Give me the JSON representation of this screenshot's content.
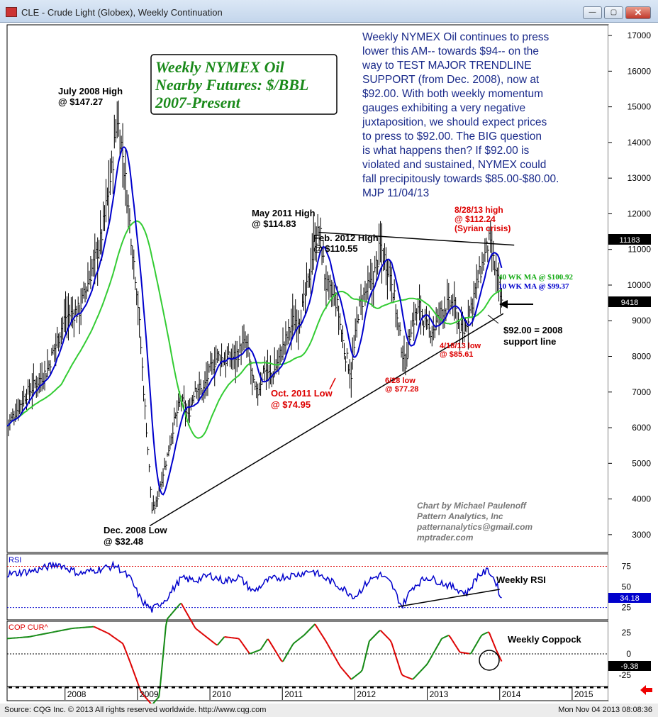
{
  "window": {
    "title": "CLE - Crude Light (Globex), Weekly Continuation",
    "min_glyph": "—",
    "max_glyph": "▢",
    "close_glyph": "✕"
  },
  "footer": {
    "source": "Source: CQG Inc. © 2013 All rights reserved worldwide. http://www.cqg.com",
    "timestamp": "Mon Nov 04 2013 08:08:36"
  },
  "chart_title": [
    "Weekly NYMEX Oil",
    "Nearby Futures: $/BBL",
    "2007-Present"
  ],
  "commentary": [
    "Weekly NYMEX Oil continues to press",
    "lower this AM-- towards $94-- on the",
    "way to TEST MAJOR TRENDLINE",
    "SUPPORT (from Dec. 2008), now at",
    "$92.00. With both weekly momentum",
    "gauges exhibiting a very negative",
    "juxtaposition, we should expect prices",
    "to press to $92.00.  The BIG question",
    "is what happens then? If $92.00 is",
    "violated and sustained, NYMEX could",
    "fall precipitously towards $85.00-$80.00.",
    "MJP 11/04/13"
  ],
  "credits": [
    "Chart by Michael Paulenoff",
    "Pattern Analytics, Inc",
    "patternanalytics@gmail.com",
    "mptrader.com"
  ],
  "annotations": {
    "july2008": [
      "July 2008 High",
      "@ $147.27"
    ],
    "dec2008": [
      "Dec. 2008 Low",
      "@ $32.48"
    ],
    "may2011": [
      "May 2011 High",
      "@ $114.83"
    ],
    "feb2012": [
      "Feb. 2012 High",
      "@ $110.55"
    ],
    "oct2011": [
      "Oct. 2011 Low",
      "@ $74.95"
    ],
    "jun2012": [
      "6/28 low",
      "@ $77.28"
    ],
    "apr2013": [
      "4/18/13 low",
      "@ $85.61"
    ],
    "aug2013": [
      "8/28/13 high",
      "@ $112.24",
      "(Syrian crisis)"
    ],
    "ma40": "40 WK MA @ $100.92",
    "ma10": "10 WK MA @ $99.37",
    "support": [
      "$92.00 = 2008",
      "support line"
    ]
  },
  "last_price_label": "9418",
  "upper_marker_label": "11183",
  "rsi_label": "RSI",
  "rsi_value_label": "34.18",
  "rsi_note": "Weekly RSI",
  "coppock_label": "COP CUR^",
  "coppock_value_label": "-9.38",
  "coppock_note": "Weekly Coppock",
  "colors": {
    "price_bars": "#000000",
    "ma10": "#0000cc",
    "ma40": "#33cc33",
    "rsi": "#0000cc",
    "coppock_up": "#118811",
    "coppock_down": "#dd0000",
    "title_green": "#1a8a1a",
    "commentary": "#1a2a8a",
    "annotation_red": "#dd0000"
  },
  "chart_data": [
    {
      "type": "ohlc",
      "title": "Weekly NYMEX Oil Nearby Futures: $/BBL 2007-Present",
      "x_ticks": [
        "2008",
        "2009",
        "2010",
        "2011",
        "2012",
        "2013",
        "2014",
        "2015"
      ],
      "y_ticks": [
        3000,
        4000,
        5000,
        6000,
        7000,
        8000,
        9000,
        10000,
        11000,
        12000,
        13000,
        14000,
        15000,
        16000,
        17000
      ],
      "y_range": [
        2500,
        17300
      ],
      "series": [
        {
          "name": "price",
          "points": [
            [
              2007.0,
              6050
            ],
            [
              2007.25,
              6900
            ],
            [
              2007.55,
              7600
            ],
            [
              2007.8,
              9100
            ],
            [
              2008.0,
              9300
            ],
            [
              2008.15,
              10300
            ],
            [
              2008.3,
              11300
            ],
            [
              2008.45,
              13300
            ],
            [
              2008.52,
              14727
            ],
            [
              2008.6,
              13600
            ],
            [
              2008.7,
              11600
            ],
            [
              2008.8,
              9700
            ],
            [
              2008.88,
              7200
            ],
            [
              2008.95,
              5200
            ],
            [
              2009.0,
              3700
            ],
            [
              2009.05,
              3800
            ],
            [
              2009.1,
              4300
            ],
            [
              2009.2,
              5100
            ],
            [
              2009.3,
              6100
            ],
            [
              2009.4,
              6800
            ],
            [
              2009.5,
              6300
            ],
            [
              2009.6,
              7200
            ],
            [
              2009.7,
              7000
            ],
            [
              2009.8,
              7600
            ],
            [
              2009.9,
              8000
            ],
            [
              2010.0,
              7900
            ],
            [
              2010.15,
              8000
            ],
            [
              2010.3,
              8400
            ],
            [
              2010.4,
              7200
            ],
            [
              2010.45,
              6900
            ],
            [
              2010.55,
              7700
            ],
            [
              2010.65,
              7400
            ],
            [
              2010.8,
              8200
            ],
            [
              2010.95,
              9000
            ],
            [
              2011.05,
              9100
            ],
            [
              2011.15,
              10000
            ],
            [
              2011.25,
              11300
            ],
            [
              2011.32,
              11483
            ],
            [
              2011.4,
              10000
            ],
            [
              2011.55,
              9500
            ],
            [
              2011.65,
              8200
            ],
            [
              2011.75,
              7495
            ],
            [
              2011.85,
              9300
            ],
            [
              2011.95,
              9800
            ],
            [
              2012.05,
              10100
            ],
            [
              2012.15,
              11055
            ],
            [
              2012.3,
              10300
            ],
            [
              2012.4,
              8800
            ],
            [
              2012.49,
              7728
            ],
            [
              2012.58,
              8900
            ],
            [
              2012.7,
              9400
            ],
            [
              2012.8,
              8700
            ],
            [
              2012.9,
              8800
            ],
            [
              2013.0,
              9300
            ],
            [
              2013.15,
              9500
            ],
            [
              2013.29,
              8561
            ],
            [
              2013.4,
              9400
            ],
            [
              2013.55,
              10500
            ],
            [
              2013.65,
              11224
            ],
            [
              2013.75,
              10300
            ],
            [
              2013.83,
              9418
            ]
          ]
        },
        {
          "name": "10 wk MA",
          "last": 99.37
        },
        {
          "name": "40 wk MA",
          "last": 100.92
        },
        {
          "name": "support trendline",
          "points": [
            [
              2008.97,
              3248
            ],
            [
              2013.85,
              9200
            ]
          ]
        },
        {
          "name": "resistance trendline",
          "points": [
            [
              2011.3,
              11480
            ],
            [
              2014.0,
              11120
            ]
          ]
        }
      ]
    },
    {
      "type": "line",
      "title": "RSI",
      "y_ticks": [
        25,
        50,
        75
      ],
      "last": 34.18,
      "series": [
        {
          "name": "RSI",
          "points": [
            [
              2007.0,
              65
            ],
            [
              2007.4,
              70
            ],
            [
              2007.7,
              78
            ],
            [
              2008.0,
              66
            ],
            [
              2008.3,
              72
            ],
            [
              2008.5,
              76
            ],
            [
              2008.7,
              60
            ],
            [
              2008.85,
              34
            ],
            [
              2009.0,
              22
            ],
            [
              2009.2,
              36
            ],
            [
              2009.4,
              60
            ],
            [
              2009.6,
              58
            ],
            [
              2009.8,
              64
            ],
            [
              2010.0,
              57
            ],
            [
              2010.2,
              62
            ],
            [
              2010.4,
              44
            ],
            [
              2010.6,
              58
            ],
            [
              2010.8,
              62
            ],
            [
              2011.0,
              65
            ],
            [
              2011.2,
              70
            ],
            [
              2011.4,
              60
            ],
            [
              2011.6,
              50
            ],
            [
              2011.8,
              38
            ],
            [
              2012.0,
              58
            ],
            [
              2012.15,
              65
            ],
            [
              2012.3,
              54
            ],
            [
              2012.45,
              26
            ],
            [
              2012.6,
              50
            ],
            [
              2012.8,
              62
            ],
            [
              2013.0,
              55
            ],
            [
              2013.2,
              48
            ],
            [
              2013.35,
              42
            ],
            [
              2013.5,
              64
            ],
            [
              2013.65,
              70
            ],
            [
              2013.75,
              55
            ],
            [
              2013.83,
              34
            ]
          ]
        },
        {
          "name": "RSI trendline",
          "points": [
            [
              2012.4,
              26
            ],
            [
              2013.8,
              47
            ]
          ]
        }
      ]
    },
    {
      "type": "line",
      "title": "COP CUR^",
      "y_ticks": [
        -25,
        0,
        25
      ],
      "last": -9.38,
      "series": [
        {
          "name": "Coppock",
          "points": [
            [
              2007.0,
              18
            ],
            [
              2007.3,
              20
            ],
            [
              2007.6,
              25
            ],
            [
              2007.9,
              30
            ],
            [
              2008.2,
              32
            ],
            [
              2008.4,
              24
            ],
            [
              2008.6,
              12
            ],
            [
              2008.7,
              -10
            ],
            [
              2008.85,
              -45
            ],
            [
              2009.0,
              -60
            ],
            [
              2009.1,
              -50
            ],
            [
              2009.2,
              40
            ],
            [
              2009.4,
              60
            ],
            [
              2009.6,
              30
            ],
            [
              2009.9,
              10
            ],
            [
              2010.0,
              20
            ],
            [
              2010.2,
              18
            ],
            [
              2010.35,
              0
            ],
            [
              2010.5,
              5
            ],
            [
              2010.6,
              18
            ],
            [
              2010.8,
              -10
            ],
            [
              2010.95,
              12
            ],
            [
              2011.1,
              22
            ],
            [
              2011.25,
              35
            ],
            [
              2011.4,
              15
            ],
            [
              2011.6,
              -15
            ],
            [
              2011.75,
              -30
            ],
            [
              2011.9,
              -20
            ],
            [
              2012.0,
              15
            ],
            [
              2012.15,
              28
            ],
            [
              2012.3,
              15
            ],
            [
              2012.45,
              -25
            ],
            [
              2012.6,
              -30
            ],
            [
              2012.8,
              -12
            ],
            [
              2013.0,
              18
            ],
            [
              2013.1,
              22
            ],
            [
              2013.25,
              2
            ],
            [
              2013.4,
              0
            ],
            [
              2013.55,
              22
            ],
            [
              2013.65,
              26
            ],
            [
              2013.75,
              5
            ],
            [
              2013.83,
              -9.38
            ]
          ]
        }
      ]
    }
  ]
}
